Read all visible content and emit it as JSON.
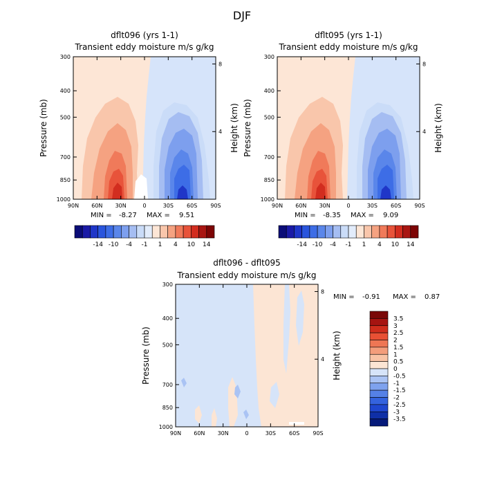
{
  "page_title": "DJF",
  "colors": {
    "neg": [
      "#0b0d77",
      "#1a1aa6",
      "#1f36c8",
      "#2a55dd",
      "#3d6de6",
      "#5a86ea",
      "#7d9fee",
      "#a5bdf2",
      "#cadcf8",
      "#e2ecfb"
    ],
    "pos": [
      "#fde6d6",
      "#f9c6ab",
      "#f5a281",
      "#f07a5a",
      "#e8533a",
      "#d22d1f",
      "#a91612",
      "#7d0505"
    ],
    "diff_neg": [
      "#061a7a",
      "#0f2fa6",
      "#1f47cf",
      "#3463de",
      "#5581e6",
      "#7ea2ee",
      "#aac3f4",
      "#d6e4f9"
    ],
    "diff_pos": [
      "#fce5d4",
      "#f8c3a5",
      "#f39d7b",
      "#ee7654",
      "#e85034",
      "#cf2d1c",
      "#a61411",
      "#7a0808"
    ]
  },
  "chart_data": [
    {
      "type": "heatmap",
      "title": "dflt096 (yrs 1-1)",
      "subtitle": "Transient eddy moisture m/s g/kg",
      "ylabel": "Pressure (mb)",
      "right_label": "Height (km)",
      "x_ticks": [
        "90N",
        "60N",
        "30N",
        "0",
        "30S",
        "60S",
        "90S"
      ],
      "x_values": [
        90,
        60,
        30,
        0,
        -30,
        -60,
        -90
      ],
      "y_ticks": [
        "300",
        "400",
        "500",
        "700",
        "850",
        "1000"
      ],
      "y_values": [
        300,
        400,
        500,
        700,
        850,
        1000
      ],
      "right_ticks": [
        "8",
        "4"
      ],
      "right_values": [
        8,
        4
      ],
      "min_label": "MIN =",
      "min_value": "-8.27",
      "max_label": "MAX =",
      "max_value": "9.51",
      "colorbar_labels": [
        "-14",
        "-10",
        "-4",
        "-1",
        "1",
        "4",
        "10",
        "14"
      ]
    },
    {
      "type": "heatmap",
      "title": "dflt095 (yrs 1-1)",
      "subtitle": "Transient eddy moisture m/s g/kg",
      "ylabel": "Pressure (mb)",
      "right_label": "Height (km)",
      "x_ticks": [
        "90N",
        "60N",
        "30N",
        "0",
        "30S",
        "60S",
        "90S"
      ],
      "x_values": [
        90,
        60,
        30,
        0,
        -30,
        -60,
        -90
      ],
      "y_ticks": [
        "300",
        "400",
        "500",
        "700",
        "850",
        "1000"
      ],
      "y_values": [
        300,
        400,
        500,
        700,
        850,
        1000
      ],
      "right_ticks": [
        "8",
        "4"
      ],
      "right_values": [
        8,
        4
      ],
      "min_label": "MIN =",
      "min_value": "-8.35",
      "max_label": "MAX =",
      "max_value": "9.09",
      "colorbar_labels": [
        "-14",
        "-10",
        "-4",
        "-1",
        "1",
        "4",
        "10",
        "14"
      ]
    },
    {
      "type": "heatmap",
      "title": "dflt096 - dflt095",
      "subtitle": "Transient eddy moisture m/s g/kg",
      "ylabel": "Pressure (mb)",
      "right_label": "Height (km)",
      "x_ticks": [
        "90N",
        "60N",
        "30N",
        "0",
        "30S",
        "60S",
        "90S"
      ],
      "x_values": [
        90,
        60,
        30,
        0,
        -30,
        -60,
        -90
      ],
      "y_ticks": [
        "300",
        "400",
        "500",
        "700",
        "850",
        "1000"
      ],
      "y_values": [
        300,
        400,
        500,
        700,
        850,
        1000
      ],
      "right_ticks": [
        "8",
        "4"
      ],
      "right_values": [
        8,
        4
      ],
      "min_label": "MIN =",
      "min_value": "-0.91",
      "max_label": "MAX =",
      "max_value": "0.87",
      "colorbar_labels": [
        "3.5",
        "3",
        "2.5",
        "2",
        "1.5",
        "1",
        "0.5",
        "0",
        "-0.5",
        "-1",
        "-1.5",
        "-2",
        "-2.5",
        "-3",
        "-3.5"
      ]
    }
  ]
}
